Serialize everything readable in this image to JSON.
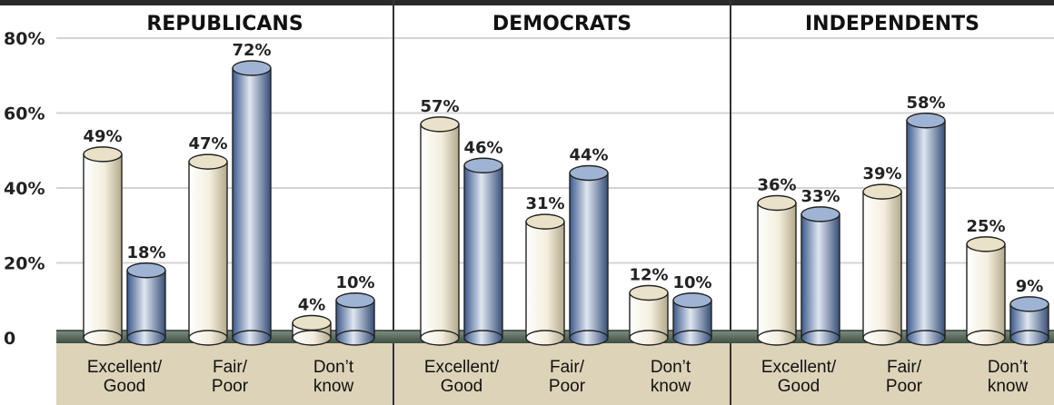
{
  "chart_data": {
    "type": "bar",
    "yticks": [
      "80%",
      "60%",
      "40%",
      "20%",
      "0"
    ],
    "ylim": [
      0,
      80
    ],
    "categories": [
      "Excellent/\nGood",
      "Fair/\nPoor",
      "Don’t\nknow"
    ],
    "panels": [
      {
        "title": "REPUBLICANS",
        "pairs": [
          {
            "values": [
              49,
              18
            ],
            "labels": [
              "49%",
              "18%"
            ]
          },
          {
            "values": [
              47,
              72
            ],
            "labels": [
              "47%",
              "72%"
            ]
          },
          {
            "values": [
              4,
              10
            ],
            "labels": [
              "4%",
              "10%"
            ]
          }
        ]
      },
      {
        "title": "DEMOCRATS",
        "pairs": [
          {
            "values": [
              57,
              46
            ],
            "labels": [
              "57%",
              "46%"
            ]
          },
          {
            "values": [
              31,
              44
            ],
            "labels": [
              "31%",
              "44%"
            ]
          },
          {
            "values": [
              12,
              10
            ],
            "labels": [
              "12%",
              "10%"
            ]
          }
        ]
      },
      {
        "title": "INDEPENDENTS",
        "pairs": [
          {
            "values": [
              36,
              33
            ],
            "labels": [
              "36%",
              "33%"
            ]
          },
          {
            "values": [
              39,
              58
            ],
            "labels": [
              "39%",
              "58%"
            ]
          },
          {
            "values": [
              25,
              9
            ],
            "labels": [
              "25%",
              "9%"
            ]
          }
        ]
      }
    ],
    "colors": {
      "cream": "#efe8d2",
      "blue": "#6d8fbe",
      "floor": "#5b6e60",
      "header": "#2a2a2a",
      "band": "#ddd3b8"
    },
    "grid": true
  }
}
